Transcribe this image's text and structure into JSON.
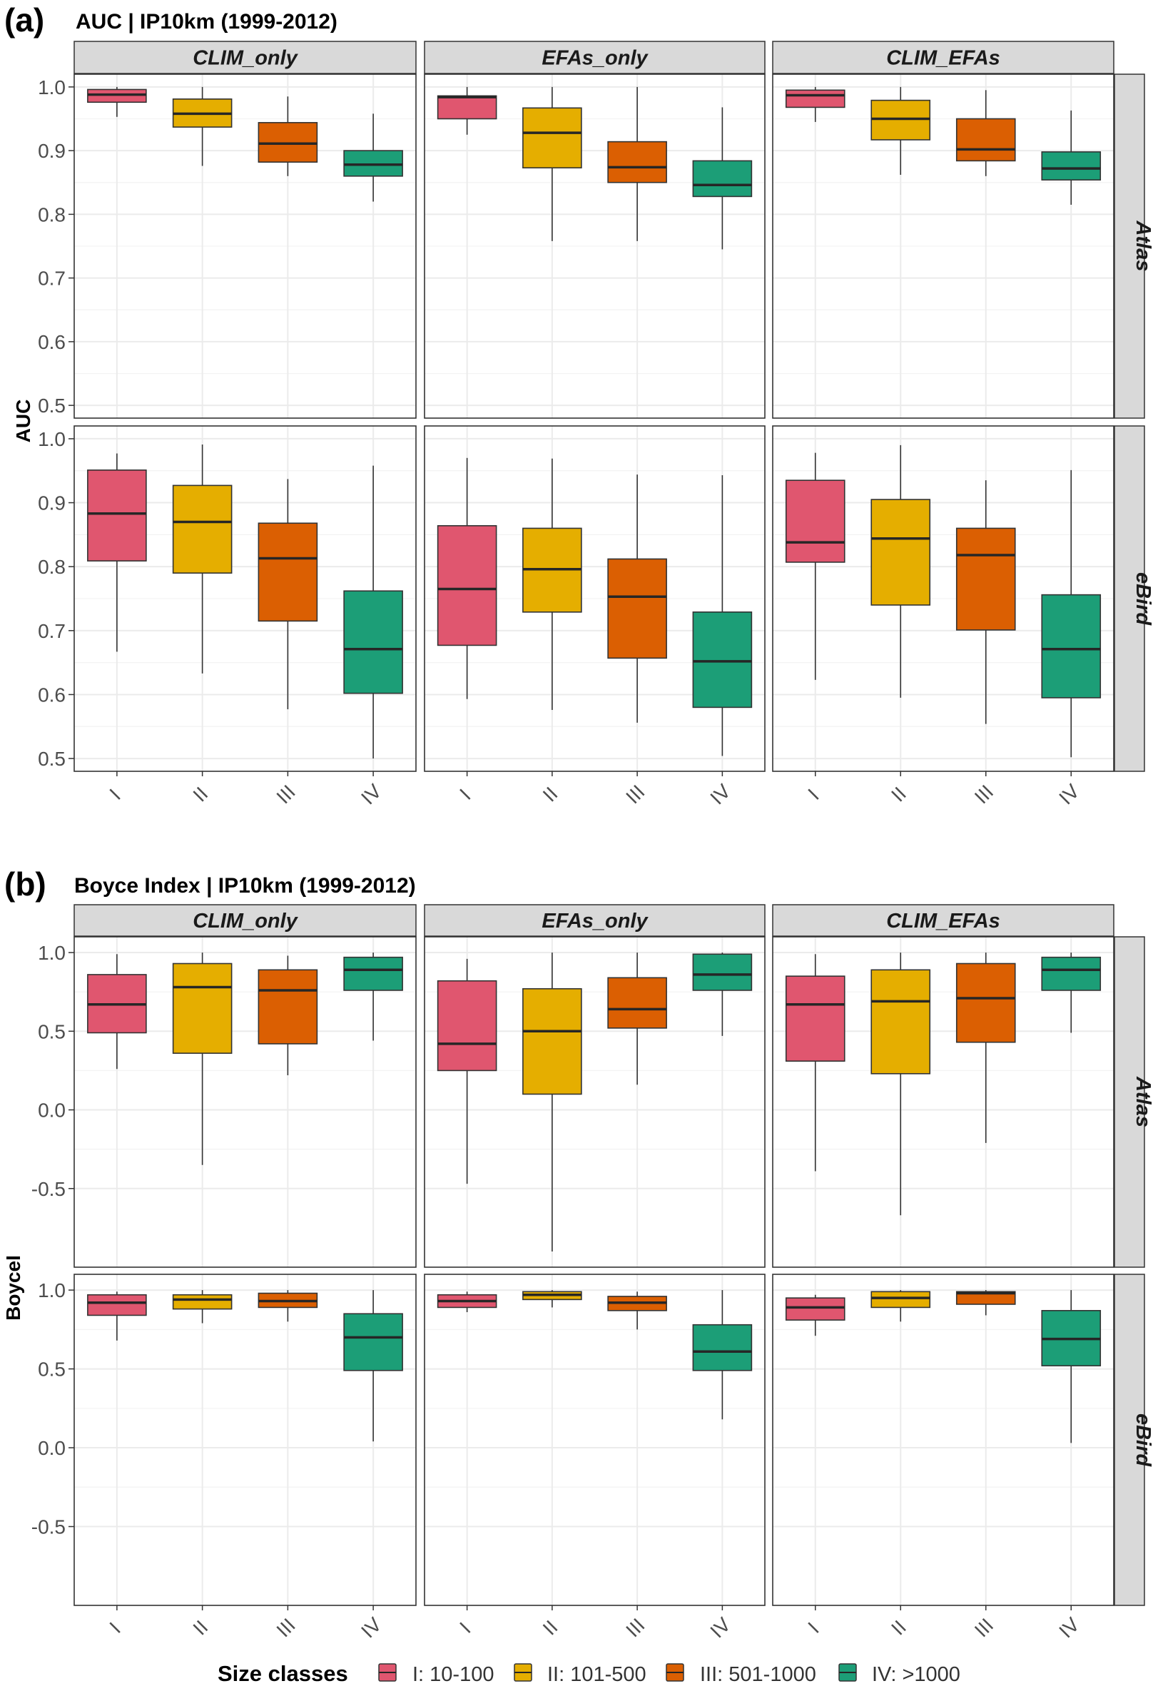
{
  "figure": {
    "panel_a_tag": "(a)",
    "panel_a_title": "AUC | IP10km (1999-2012)",
    "panel_b_tag": "(b)",
    "panel_b_title": "Boyce Index | IP10km (1999-2012)"
  },
  "colors": {
    "I": "#E0566F",
    "II": "#E5AE00",
    "III": "#DB5F02",
    "IV": "#1C9E77",
    "strip": "#D9D9D9",
    "grid": "#EBEBEB",
    "median": "#262626"
  },
  "legend": {
    "title": "Size classes",
    "items": [
      {
        "key": "I",
        "label": "I: 10-100"
      },
      {
        "key": "II",
        "label": "II: 101-500"
      },
      {
        "key": "III",
        "label": "III: 501-1000"
      },
      {
        "key": "IV",
        "label": "IV: >1000"
      }
    ]
  },
  "chart_data": [
    {
      "type": "box",
      "title": "AUC | IP10km (1999-2012)",
      "ylabel": "AUC",
      "ylim": [
        0.48,
        1.02
      ],
      "yticks": [
        0.5,
        0.6,
        0.7,
        0.8,
        0.9,
        1.0
      ],
      "ytick_labels": [
        "0.5",
        "0.6",
        "0.7",
        "0.8",
        "0.9",
        "1.0"
      ],
      "categories": [
        "I",
        "II",
        "III",
        "IV"
      ],
      "columns": [
        "CLIM_only",
        "EFAs_only",
        "CLIM_EFAs"
      ],
      "rows": [
        "Atlas",
        "eBird"
      ],
      "panels": [
        {
          "column": "CLIM_only",
          "row": "Atlas",
          "boxes": [
            {
              "cat": "I",
              "min": 0.953,
              "q1": 0.976,
              "median": 0.988,
              "q3": 0.996,
              "max": 1.0
            },
            {
              "cat": "II",
              "min": 0.876,
              "q1": 0.937,
              "median": 0.958,
              "q3": 0.981,
              "max": 1.0
            },
            {
              "cat": "III",
              "min": 0.86,
              "q1": 0.882,
              "median": 0.911,
              "q3": 0.944,
              "max": 0.985
            },
            {
              "cat": "IV",
              "min": 0.82,
              "q1": 0.86,
              "median": 0.878,
              "q3": 0.9,
              "max": 0.958
            }
          ]
        },
        {
          "column": "EFAs_only",
          "row": "Atlas",
          "boxes": [
            {
              "cat": "I",
              "min": 0.925,
              "q1": 0.95,
              "median": 0.984,
              "q3": 0.986,
              "max": 1.0
            },
            {
              "cat": "II",
              "min": 0.758,
              "q1": 0.873,
              "median": 0.928,
              "q3": 0.967,
              "max": 1.0
            },
            {
              "cat": "III",
              "min": 0.758,
              "q1": 0.85,
              "median": 0.874,
              "q3": 0.914,
              "max": 1.0
            },
            {
              "cat": "IV",
              "min": 0.745,
              "q1": 0.828,
              "median": 0.846,
              "q3": 0.884,
              "max": 0.968
            }
          ]
        },
        {
          "column": "CLIM_EFAs",
          "row": "Atlas",
          "boxes": [
            {
              "cat": "I",
              "min": 0.945,
              "q1": 0.968,
              "median": 0.987,
              "q3": 0.995,
              "max": 1.0
            },
            {
              "cat": "II",
              "min": 0.862,
              "q1": 0.917,
              "median": 0.95,
              "q3": 0.979,
              "max": 1.0
            },
            {
              "cat": "III",
              "min": 0.86,
              "q1": 0.884,
              "median": 0.902,
              "q3": 0.95,
              "max": 0.995
            },
            {
              "cat": "IV",
              "min": 0.815,
              "q1": 0.854,
              "median": 0.872,
              "q3": 0.898,
              "max": 0.963
            }
          ]
        },
        {
          "column": "CLIM_only",
          "row": "eBird",
          "boxes": [
            {
              "cat": "I",
              "min": 0.667,
              "q1": 0.809,
              "median": 0.883,
              "q3": 0.951,
              "max": 0.977
            },
            {
              "cat": "II",
              "min": 0.633,
              "q1": 0.79,
              "median": 0.87,
              "q3": 0.927,
              "max": 0.991
            },
            {
              "cat": "III",
              "min": 0.577,
              "q1": 0.715,
              "median": 0.813,
              "q3": 0.868,
              "max": 0.937
            },
            {
              "cat": "IV",
              "min": 0.5,
              "q1": 0.602,
              "median": 0.671,
              "q3": 0.762,
              "max": 0.958
            }
          ]
        },
        {
          "column": "EFAs_only",
          "row": "eBird",
          "boxes": [
            {
              "cat": "I",
              "min": 0.593,
              "q1": 0.677,
              "median": 0.765,
              "q3": 0.864,
              "max": 0.97
            },
            {
              "cat": "II",
              "min": 0.576,
              "q1": 0.729,
              "median": 0.796,
              "q3": 0.86,
              "max": 0.969
            },
            {
              "cat": "III",
              "min": 0.556,
              "q1": 0.657,
              "median": 0.753,
              "q3": 0.812,
              "max": 0.944
            },
            {
              "cat": "IV",
              "min": 0.504,
              "q1": 0.58,
              "median": 0.652,
              "q3": 0.729,
              "max": 0.943
            }
          ]
        },
        {
          "column": "CLIM_EFAs",
          "row": "eBird",
          "boxes": [
            {
              "cat": "I",
              "min": 0.623,
              "q1": 0.807,
              "median": 0.838,
              "q3": 0.935,
              "max": 0.978
            },
            {
              "cat": "II",
              "min": 0.595,
              "q1": 0.74,
              "median": 0.844,
              "q3": 0.905,
              "max": 0.99
            },
            {
              "cat": "III",
              "min": 0.554,
              "q1": 0.701,
              "median": 0.818,
              "q3": 0.86,
              "max": 0.935
            },
            {
              "cat": "IV",
              "min": 0.502,
              "q1": 0.595,
              "median": 0.671,
              "q3": 0.756,
              "max": 0.951
            }
          ]
        }
      ]
    },
    {
      "type": "box",
      "title": "Boyce Index | IP10km (1999-2012)",
      "ylabel": "BoyceI",
      "ylim": [
        -1.0,
        1.1
      ],
      "yticks": [
        -0.5,
        0.0,
        0.5,
        1.0
      ],
      "ytick_labels": [
        "-0.5",
        "0.0",
        "0.5",
        "1.0"
      ],
      "categories": [
        "I",
        "II",
        "III",
        "IV"
      ],
      "columns": [
        "CLIM_only",
        "EFAs_only",
        "CLIM_EFAs"
      ],
      "rows": [
        "Atlas",
        "eBird"
      ],
      "panels": [
        {
          "column": "CLIM_only",
          "row": "Atlas",
          "boxes": [
            {
              "cat": "I",
              "min": 0.26,
              "q1": 0.49,
              "median": 0.67,
              "q3": 0.86,
              "max": 0.99
            },
            {
              "cat": "II",
              "min": -0.35,
              "q1": 0.36,
              "median": 0.78,
              "q3": 0.93,
              "max": 1.0
            },
            {
              "cat": "III",
              "min": 0.22,
              "q1": 0.42,
              "median": 0.76,
              "q3": 0.89,
              "max": 0.98
            },
            {
              "cat": "IV",
              "min": 0.44,
              "q1": 0.76,
              "median": 0.89,
              "q3": 0.97,
              "max": 1.0
            }
          ]
        },
        {
          "column": "EFAs_only",
          "row": "Atlas",
          "boxes": [
            {
              "cat": "I",
              "min": -0.47,
              "q1": 0.25,
              "median": 0.42,
              "q3": 0.82,
              "max": 0.96
            },
            {
              "cat": "II",
              "min": -0.9,
              "q1": 0.1,
              "median": 0.5,
              "q3": 0.77,
              "max": 1.0
            },
            {
              "cat": "III",
              "min": 0.16,
              "q1": 0.52,
              "median": 0.64,
              "q3": 0.84,
              "max": 1.0
            },
            {
              "cat": "IV",
              "min": 0.47,
              "q1": 0.76,
              "median": 0.86,
              "q3": 0.99,
              "max": 1.0
            }
          ]
        },
        {
          "column": "CLIM_EFAs",
          "row": "Atlas",
          "boxes": [
            {
              "cat": "I",
              "min": -0.39,
              "q1": 0.31,
              "median": 0.67,
              "q3": 0.85,
              "max": 0.99
            },
            {
              "cat": "II",
              "min": -0.67,
              "q1": 0.23,
              "median": 0.69,
              "q3": 0.89,
              "max": 1.0
            },
            {
              "cat": "III",
              "min": -0.21,
              "q1": 0.43,
              "median": 0.71,
              "q3": 0.93,
              "max": 1.0
            },
            {
              "cat": "IV",
              "min": 0.49,
              "q1": 0.76,
              "median": 0.89,
              "q3": 0.97,
              "max": 1.0
            }
          ]
        },
        {
          "column": "CLIM_only",
          "row": "eBird",
          "boxes": [
            {
              "cat": "I",
              "min": 0.68,
              "q1": 0.84,
              "median": 0.92,
              "q3": 0.97,
              "max": 0.99
            },
            {
              "cat": "II",
              "min": 0.79,
              "q1": 0.88,
              "median": 0.94,
              "q3": 0.97,
              "max": 1.0
            },
            {
              "cat": "III",
              "min": 0.8,
              "q1": 0.89,
              "median": 0.93,
              "q3": 0.98,
              "max": 1.0
            },
            {
              "cat": "IV",
              "min": 0.04,
              "q1": 0.49,
              "median": 0.7,
              "q3": 0.85,
              "max": 1.0
            }
          ]
        },
        {
          "column": "EFAs_only",
          "row": "eBird",
          "boxes": [
            {
              "cat": "I",
              "min": 0.86,
              "q1": 0.89,
              "median": 0.93,
              "q3": 0.97,
              "max": 0.99
            },
            {
              "cat": "II",
              "min": 0.89,
              "q1": 0.94,
              "median": 0.97,
              "q3": 0.99,
              "max": 1.0
            },
            {
              "cat": "III",
              "min": 0.75,
              "q1": 0.87,
              "median": 0.92,
              "q3": 0.96,
              "max": 0.99
            },
            {
              "cat": "IV",
              "min": 0.18,
              "q1": 0.49,
              "median": 0.61,
              "q3": 0.78,
              "max": 1.0
            }
          ]
        },
        {
          "column": "CLIM_EFAs",
          "row": "eBird",
          "boxes": [
            {
              "cat": "I",
              "min": 0.71,
              "q1": 0.81,
              "median": 0.89,
              "q3": 0.95,
              "max": 0.97
            },
            {
              "cat": "II",
              "min": 0.8,
              "q1": 0.89,
              "median": 0.95,
              "q3": 0.99,
              "max": 1.0
            },
            {
              "cat": "III",
              "min": 0.84,
              "q1": 0.91,
              "median": 0.98,
              "q3": 0.99,
              "max": 1.0
            },
            {
              "cat": "IV",
              "min": 0.03,
              "q1": 0.52,
              "median": 0.69,
              "q3": 0.87,
              "max": 1.0
            }
          ]
        }
      ]
    }
  ]
}
